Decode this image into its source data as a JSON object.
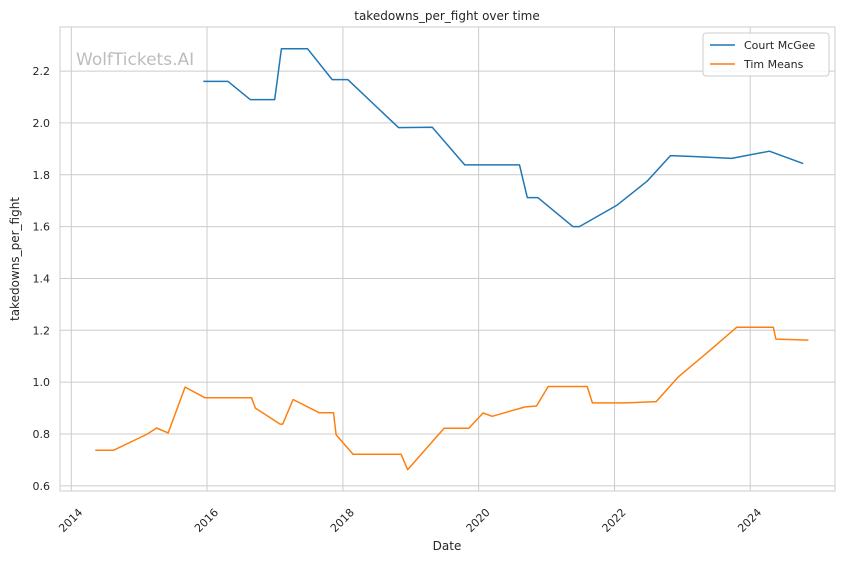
{
  "watermark": "WolfTickets.AI",
  "chart_data": {
    "type": "line",
    "title": "takedowns_per_fight over time",
    "xlabel": "Date",
    "ylabel": "takedowns_per_fight",
    "xlim": [
      "2013-11-01",
      "2025-04-01"
    ],
    "ylim": [
      0.58,
      2.37
    ],
    "x_ticks": [
      "2014",
      "2016",
      "2018",
      "2020",
      "2022",
      "2024"
    ],
    "y_ticks": [
      "0.6",
      "0.8",
      "1.0",
      "1.2",
      "1.4",
      "1.6",
      "1.8",
      "2.0",
      "2.2"
    ],
    "grid": true,
    "legend_position": "top-right",
    "series": [
      {
        "name": "Court McGee",
        "color": "#1f77b4",
        "points": [
          [
            "2015-12-12",
            2.16
          ],
          [
            "2016-04-23",
            2.16
          ],
          [
            "2016-08-20",
            2.09
          ],
          [
            "2016-12-30",
            2.09
          ],
          [
            "2017-02-04",
            2.286
          ],
          [
            "2017-06-25",
            2.286
          ],
          [
            "2017-11-04",
            2.167
          ],
          [
            "2018-01-27",
            2.167
          ],
          [
            "2018-10-27",
            1.982
          ],
          [
            "2019-04-27",
            1.983
          ],
          [
            "2019-10-18",
            1.838
          ],
          [
            "2020-08-08",
            1.838
          ],
          [
            "2020-09-19",
            1.712
          ],
          [
            "2020-11-14",
            1.712
          ],
          [
            "2021-05-22",
            1.6
          ],
          [
            "2021-06-26",
            1.6
          ],
          [
            "2022-01-15",
            1.683
          ],
          [
            "2022-06-25",
            1.775
          ],
          [
            "2022-10-29",
            1.874
          ],
          [
            "2023-03-15",
            1.87
          ],
          [
            "2023-09-23",
            1.863
          ],
          [
            "2024-04-13",
            1.891
          ],
          [
            "2024-10-12",
            1.843
          ]
        ]
      },
      {
        "name": "Tim Means",
        "color": "#ff7f0e",
        "points": [
          [
            "2014-05-10",
            0.737
          ],
          [
            "2014-08-16",
            0.737
          ],
          [
            "2015-02-14",
            0.8
          ],
          [
            "2015-04-04",
            0.823
          ],
          [
            "2015-06-06",
            0.804
          ],
          [
            "2015-09-05",
            0.981
          ],
          [
            "2015-12-20",
            0.94
          ],
          [
            "2016-08-27",
            0.94
          ],
          [
            "2016-09-17",
            0.9
          ],
          [
            "2017-01-28",
            0.838
          ],
          [
            "2017-02-11",
            0.838
          ],
          [
            "2017-04-08",
            0.933
          ],
          [
            "2017-08-26",
            0.882
          ],
          [
            "2017-11-11",
            0.882
          ],
          [
            "2017-11-25",
            0.797
          ],
          [
            "2018-02-24",
            0.722
          ],
          [
            "2018-11-10",
            0.722
          ],
          [
            "2018-12-15",
            0.662
          ],
          [
            "2019-06-29",
            0.822
          ],
          [
            "2019-11-09",
            0.822
          ],
          [
            "2020-01-25",
            0.881
          ],
          [
            "2020-03-14",
            0.868
          ],
          [
            "2020-09-05",
            0.904
          ],
          [
            "2020-11-07",
            0.908
          ],
          [
            "2021-01-09",
            0.983
          ],
          [
            "2021-08-07",
            0.983
          ],
          [
            "2021-09-04",
            0.92
          ],
          [
            "2022-02-26",
            0.92
          ],
          [
            "2022-08-13",
            0.925
          ],
          [
            "2022-12-10",
            1.02
          ],
          [
            "2023-05-20",
            1.117
          ],
          [
            "2023-10-21",
            1.212
          ],
          [
            "2024-05-04",
            1.212
          ],
          [
            "2024-05-18",
            1.166
          ],
          [
            "2024-11-09",
            1.162
          ]
        ]
      }
    ]
  }
}
